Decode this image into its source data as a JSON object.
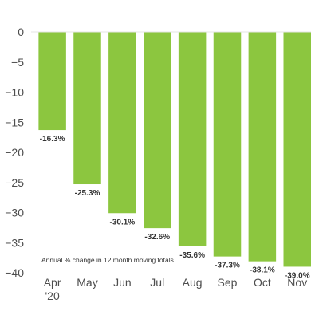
{
  "chart_data": {
    "type": "bar",
    "categories": [
      "Apr",
      "May",
      "Jun",
      "Jul",
      "Aug",
      "Sep",
      "Oct",
      "Nov"
    ],
    "category_sublabels": [
      "'20",
      "",
      "",
      "",
      "",
      "",
      "",
      ""
    ],
    "values": [
      -16.3,
      -25.3,
      -30.1,
      -32.6,
      -35.6,
      -37.3,
      -38.1,
      -39.0
    ],
    "data_labels": [
      "-16.3%",
      "-25.3%",
      "-30.1%",
      "-32.6%",
      "-35.6%",
      "-37.3%",
      "-38.1%",
      "-39.0%"
    ],
    "yticks": [
      0,
      -5,
      -10,
      -15,
      -20,
      -25,
      -30,
      -35,
      -40
    ],
    "ylim": [
      -40,
      0
    ],
    "annotation": "Annual % change in 12 month moving totals",
    "bar_color": "#8cc63f",
    "title": "",
    "xlabel": "",
    "ylabel": "",
    "grid": false,
    "legend": "none"
  }
}
